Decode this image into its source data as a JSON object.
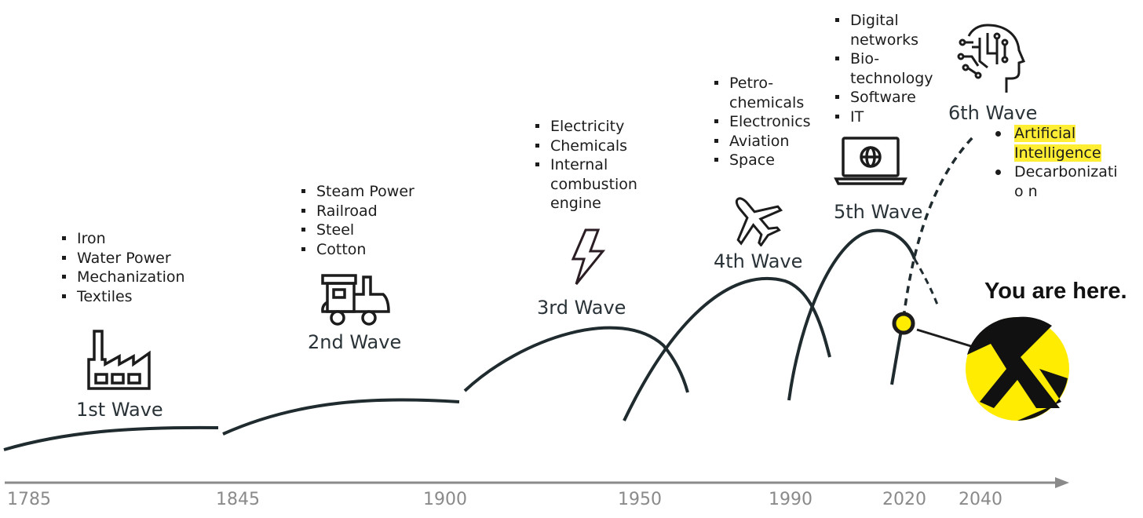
{
  "waves": [
    {
      "title": "1st Wave",
      "items": [
        "Iron",
        "Water Power",
        "Mechanization",
        "Textiles"
      ],
      "icon": "factory-icon"
    },
    {
      "title": "2nd Wave",
      "items": [
        "Steam Power",
        "Railroad",
        "Steel",
        "Cotton"
      ],
      "icon": "train-icon"
    },
    {
      "title": "3rd Wave",
      "items": [
        "Electricity",
        "Chemicals",
        "Internal combustion engine"
      ],
      "icon": "lightning-icon"
    },
    {
      "title": "4th Wave",
      "items": [
        "Petro-chemicals",
        "Electronics",
        "Aviation",
        "Space"
      ],
      "icon": "airplane-icon"
    },
    {
      "title": "5th Wave",
      "items": [
        "Digital networks",
        "Bio-technology",
        "Software",
        "IT"
      ],
      "icon": "laptop-globe-icon"
    },
    {
      "title": "6th Wave",
      "items": [
        "Artificial Intelligence",
        "Decarbonizatio n"
      ],
      "icon": "ai-head-icon",
      "highlighted_item": "Artificial Intelligence"
    }
  ],
  "timeline": {
    "years": [
      "1785",
      "1845",
      "1900",
      "1950",
      "1990",
      "2020",
      "2040"
    ]
  },
  "marker": {
    "label": "You are here.",
    "color": "#ffec00"
  },
  "colors": {
    "curve": "#1f2b2e",
    "axis": "#8a8a8a",
    "highlight": "#ffee33",
    "logo_yellow": "#ffec00"
  }
}
